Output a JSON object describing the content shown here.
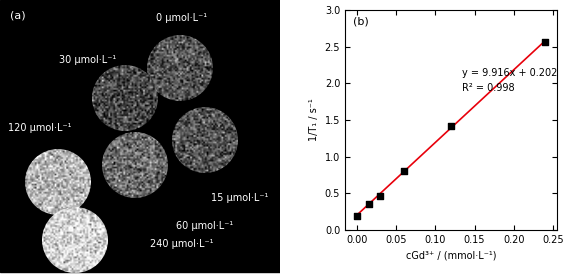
{
  "image_panel": {
    "label": "(a)",
    "samples": [
      {
        "label": "0 μmol·L⁻¹"
      },
      {
        "label": "30 μmol·L⁻¹"
      },
      {
        "label": "15 μmol·L⁻¹"
      },
      {
        "label": "60 μmol·L⁻¹"
      },
      {
        "label": "120 μmol·L⁻¹"
      },
      {
        "label": "240 μmol·L⁻¹"
      }
    ]
  },
  "chart_data": {
    "type": "scatter",
    "panel_label": "(b)",
    "x": [
      0,
      0.015,
      0.03,
      0.06,
      0.12,
      0.24
    ],
    "values": [
      0.19,
      0.36,
      0.46,
      0.81,
      1.42,
      2.56
    ],
    "color": "#000000",
    "marker": "square",
    "fit": {
      "slope": 9.916,
      "intercept": 0.202,
      "color": "#e8000b",
      "equation": "y = 9.916x + 0.202",
      "r_squared": "R² = 0.998"
    },
    "x_label": "cGd³⁺ / (mmol·L⁻¹)",
    "y_label": "1/T₁ / s⁻¹",
    "xlim": [
      -0.015,
      0.255
    ],
    "xticks": [
      {
        "value": 0,
        "label": "0.00"
      },
      {
        "value": 0.05,
        "label": "0.05"
      },
      {
        "value": 0.1,
        "label": "0.10"
      },
      {
        "value": 0.15,
        "label": "0.15"
      },
      {
        "value": 0.2,
        "label": "0.20"
      },
      {
        "value": 0.25,
        "label": "0.25"
      }
    ],
    "ylim": [
      0,
      3.0
    ],
    "yticks": [
      {
        "value": 0,
        "label": "0.0"
      },
      0.5,
      {
        "value": 1.0,
        "label": "1.0"
      },
      1.5,
      {
        "value": 2.0,
        "label": "2.0"
      },
      2.5,
      {
        "value": 3.0,
        "label": "3.0"
      }
    ],
    "grid": false
  }
}
